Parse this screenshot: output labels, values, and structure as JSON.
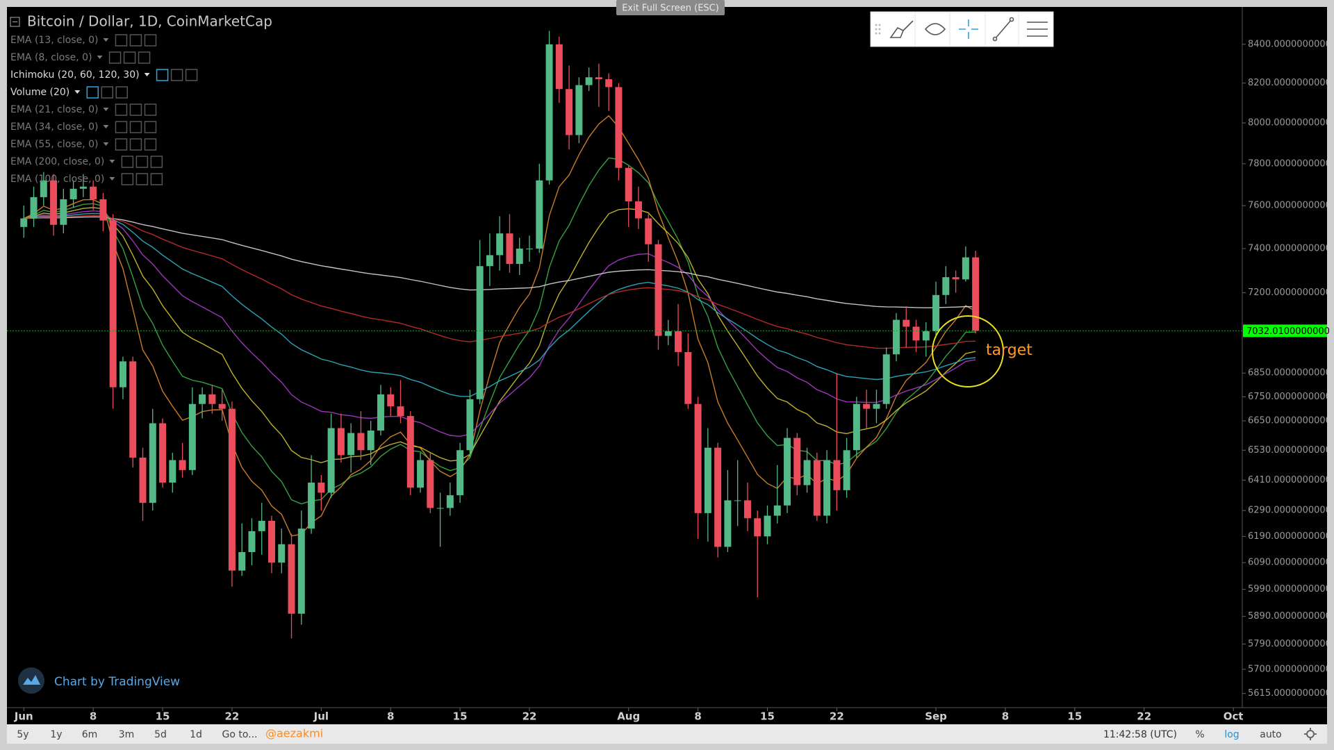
{
  "ui": {
    "exit_fullscreen": "Exit Full Screen (ESC)",
    "branding": "Chart by TradingView",
    "bottom_toolbar": [
      "5y",
      "1y",
      "6m",
      "3m",
      "5d",
      "1d",
      "Go to..."
    ],
    "username": "@aezakmi",
    "clock": "11:42:58 (UTC)",
    "scale_options": [
      "%",
      "log",
      "auto"
    ]
  },
  "chart_data": {
    "type": "candlestick",
    "title": "Bitcoin / Dollar, 1D, CoinMarketCap",
    "log_scale": true,
    "up_color": "#53b987",
    "down_color": "#eb4d5c",
    "indicators": [
      {
        "label": "EMA (13, close, 0)",
        "period": 13,
        "color": "#3bb34a"
      },
      {
        "label": "EMA (8, close, 0)",
        "period": 8,
        "color": "#e08a2c"
      },
      {
        "label": "Ichimoku (20, 60, 120, 30)"
      },
      {
        "label": "Volume (20)"
      },
      {
        "label": "EMA (21, close, 0)",
        "period": 21,
        "color": "#d4c431"
      },
      {
        "label": "EMA (34, close, 0)",
        "period": 34,
        "color": "#b03ad0"
      },
      {
        "label": "EMA (55, close, 0)",
        "period": 55,
        "color": "#2fb6c8"
      },
      {
        "label": "EMA (200, close, 0)",
        "period": 200,
        "color": "#d8d8d8"
      },
      {
        "label": "EMA (100, close, 0)",
        "period": 100,
        "color": "#c8302c"
      }
    ],
    "x": [
      0,
      1,
      2,
      3,
      4,
      5,
      6,
      7,
      8,
      9,
      10,
      11,
      12,
      13,
      14,
      15,
      16,
      17,
      18,
      19,
      20,
      21,
      22,
      23,
      24,
      25,
      26,
      27,
      28,
      29,
      30,
      31,
      32,
      33,
      34,
      35,
      36,
      37,
      38,
      39,
      40,
      41,
      42,
      43,
      44,
      45,
      46,
      47,
      48,
      49,
      50,
      51,
      52,
      53,
      54,
      55,
      56,
      57,
      58,
      59,
      60,
      61,
      62,
      63,
      64,
      65,
      66,
      67,
      68,
      69,
      70,
      71,
      72,
      73,
      74,
      75,
      76,
      77,
      78,
      79,
      80,
      81,
      82,
      83,
      84,
      85,
      86,
      87,
      88,
      89,
      90,
      91,
      92,
      93,
      94,
      95,
      96
    ],
    "open": [
      7500,
      7540,
      7640,
      7720,
      7510,
      7630,
      7680,
      7690,
      7630,
      7530,
      6790,
      6900,
      6500,
      6320,
      6640,
      6400,
      6490,
      6450,
      6720,
      6760,
      6720,
      6700,
      6060,
      6130,
      6210,
      6250,
      6090,
      6160,
      5900,
      6220,
      6400,
      6360,
      6620,
      6510,
      6600,
      6530,
      6610,
      6760,
      6710,
      6670,
      6380,
      6490,
      6300,
      6300,
      6350,
      6530,
      6740,
      7320,
      7370,
      7470,
      7330,
      7400,
      7400,
      7720,
      8400,
      8170,
      7940,
      8190,
      8230,
      8220,
      8180,
      7780,
      7620,
      7540,
      7420,
      7010,
      7030,
      6940,
      6720,
      6280,
      6540,
      6150,
      6330,
      6330,
      6260,
      6190,
      6270,
      6310,
      6580,
      6390,
      6490,
      6270,
      6490,
      6370,
      6530,
      6720,
      6700,
      6720,
      6930,
      7080,
      7050,
      6990,
      7030,
      7190,
      7270,
      7260,
      7360
    ],
    "high": [
      7600,
      7690,
      7760,
      7750,
      7680,
      7720,
      7750,
      7720,
      7660,
      7560,
      6920,
      6920,
      6540,
      6700,
      6660,
      6520,
      6560,
      6790,
      6790,
      6800,
      6780,
      6730,
      6240,
      6260,
      6320,
      6270,
      6220,
      6200,
      6290,
      6510,
      6430,
      6680,
      6680,
      6640,
      6690,
      6650,
      6800,
      6790,
      6820,
      6690,
      6520,
      6520,
      6360,
      6400,
      6560,
      6780,
      7440,
      7470,
      7550,
      7560,
      7450,
      7460,
      7800,
      8470,
      8440,
      8290,
      8230,
      8280,
      8300,
      8250,
      8200,
      7790,
      7690,
      7560,
      7440,
      7080,
      7150,
      7020,
      6750,
      6620,
      6560,
      6450,
      6490,
      6400,
      6290,
      6310,
      6470,
      6620,
      6600,
      6540,
      6520,
      6530,
      6850,
      6580,
      6750,
      6780,
      6780,
      6960,
      7110,
      7140,
      7080,
      7070,
      7250,
      7320,
      7300,
      7410,
      7390
    ],
    "low": [
      7450,
      7500,
      7600,
      7460,
      7470,
      7590,
      7640,
      7580,
      7480,
      6700,
      6740,
      6460,
      6250,
      6290,
      6380,
      6360,
      6420,
      6430,
      6660,
      6680,
      6650,
      6000,
      6040,
      6080,
      6120,
      6050,
      6050,
      5810,
      5860,
      6200,
      6290,
      6340,
      6480,
      6440,
      6490,
      6470,
      6590,
      6670,
      6640,
      6350,
      6360,
      6280,
      6150,
      6270,
      6320,
      6500,
      6720,
      7230,
      7300,
      7290,
      7280,
      7340,
      7380,
      7700,
      8100,
      7870,
      7900,
      8160,
      8080,
      8060,
      7720,
      7500,
      7490,
      7340,
      6950,
      6970,
      6880,
      6700,
      6180,
      6170,
      6110,
      6130,
      6230,
      6210,
      5960,
      6160,
      6240,
      6280,
      6350,
      6360,
      6250,
      6240,
      6290,
      6340,
      6500,
      6620,
      6640,
      6700,
      6900,
      6960,
      6940,
      6920,
      7010,
      7150,
      7200,
      7250,
      7020
    ],
    "close": [
      7540,
      7640,
      7720,
      7510,
      7630,
      7680,
      7690,
      7630,
      7530,
      6790,
      6900,
      6500,
      6320,
      6640,
      6400,
      6490,
      6450,
      6720,
      6760,
      6720,
      6700,
      6060,
      6130,
      6210,
      6250,
      6090,
      6160,
      5900,
      6220,
      6400,
      6360,
      6620,
      6510,
      6600,
      6530,
      6610,
      6760,
      6710,
      6670,
      6380,
      6490,
      6300,
      6300,
      6350,
      6530,
      6740,
      7320,
      7370,
      7470,
      7330,
      7400,
      7400,
      7720,
      8400,
      8170,
      7940,
      8190,
      8230,
      8220,
      8180,
      7780,
      7620,
      7540,
      7420,
      7010,
      7030,
      6940,
      6720,
      6280,
      6540,
      6150,
      6330,
      6330,
      6260,
      6190,
      6270,
      6310,
      6580,
      6390,
      6490,
      6270,
      6490,
      6370,
      6530,
      6720,
      6700,
      6720,
      6930,
      7080,
      7050,
      6990,
      7030,
      7190,
      7270,
      7260,
      7360,
      7032
    ],
    "xlim": [
      -1.7,
      122.9
    ],
    "xticks": [
      {
        "value": 0,
        "label": "Jun"
      },
      {
        "value": 7,
        "label": "8"
      },
      {
        "value": 14,
        "label": "15"
      },
      {
        "value": 21,
        "label": "22"
      },
      {
        "value": 30,
        "label": "Jul"
      },
      {
        "value": 37,
        "label": "8"
      },
      {
        "value": 44,
        "label": "15"
      },
      {
        "value": 51,
        "label": "22"
      },
      {
        "value": 61,
        "label": "Aug"
      },
      {
        "value": 68,
        "label": "8"
      },
      {
        "value": 75,
        "label": "15"
      },
      {
        "value": 82,
        "label": "22"
      },
      {
        "value": 92,
        "label": "Sep"
      },
      {
        "value": 99,
        "label": "8"
      },
      {
        "value": 106,
        "label": "15"
      },
      {
        "value": 113,
        "label": "22"
      },
      {
        "value": 122,
        "label": "Oct"
      }
    ],
    "ylim": [
      5566,
      8597
    ],
    "yticks": [
      {
        "value": 8400,
        "label": "8400.0000000000"
      },
      {
        "value": 8200,
        "label": "8200.0000000000"
      },
      {
        "value": 8000,
        "label": "8000.0000000000"
      },
      {
        "value": 7800,
        "label": "7800.0000000000"
      },
      {
        "value": 7600,
        "label": "7600.0000000000"
      },
      {
        "value": 7400,
        "label": "7400.0000000000"
      },
      {
        "value": 7200,
        "label": "7200.0000000000"
      },
      {
        "value": 6850,
        "label": "6850.0000000000"
      },
      {
        "value": 6750,
        "label": "6750.0000000000"
      },
      {
        "value": 6650,
        "label": "6650.0000000000"
      },
      {
        "value": 6530,
        "label": "6530.0000000000"
      },
      {
        "value": 6410,
        "label": "6410.0000000000"
      },
      {
        "value": 6290,
        "label": "6290.0000000000"
      },
      {
        "value": 6190,
        "label": "6190.0000000000"
      },
      {
        "value": 6090,
        "label": "6090.0000000000"
      },
      {
        "value": 5990,
        "label": "5990.0000000000"
      },
      {
        "value": 5890,
        "label": "5890.0000000000"
      },
      {
        "value": 5790,
        "label": "5790.0000000000"
      },
      {
        "value": 5700,
        "label": "5700.0000000000"
      },
      {
        "value": 5615,
        "label": "5615.0000000000"
      }
    ],
    "last_price": {
      "value": 7032.01,
      "label": "7032.0100000000"
    },
    "annotation": "target"
  }
}
